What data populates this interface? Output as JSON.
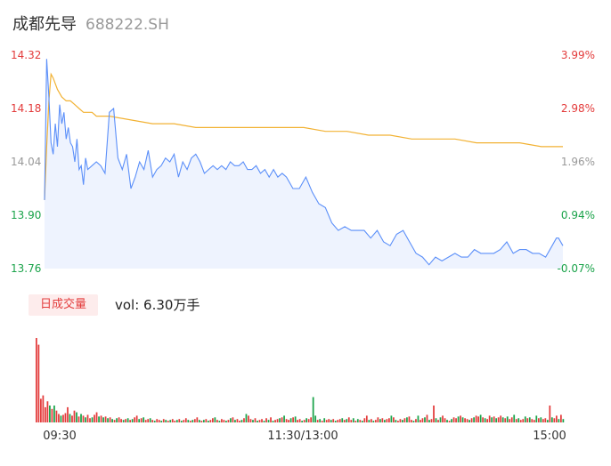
{
  "header": {
    "name": "成都先导",
    "code": "688222.SH"
  },
  "volume": {
    "tag": "日成交量",
    "label": "vol: 6.30万手"
  },
  "colors": {
    "price": "#5b8ff9",
    "avg": "#f2b234",
    "up": "#e33b3b",
    "down": "#1aa34a",
    "fill": "#eef3fe"
  },
  "chart_data": {
    "type": "line",
    "title": "",
    "price_axis": {
      "ylim": [
        13.76,
        14.32
      ],
      "ticks": [
        "14.32",
        "14.18",
        "14.04",
        "13.90",
        "13.76"
      ]
    },
    "pct_axis": {
      "ticks": [
        "3.99%",
        "2.98%",
        "1.96%",
        "0.94%",
        "-0.07%"
      ]
    },
    "x_ticks": [
      "09:30",
      "11:30/13:00",
      "15:00"
    ],
    "x_range": [
      0,
      240
    ],
    "series": [
      {
        "name": "",
        "kind": "price",
        "x": [
          0,
          1,
          2,
          3,
          4,
          5,
          6,
          7,
          8,
          9,
          10,
          11,
          12,
          13,
          14,
          15,
          16,
          17,
          18,
          19,
          20,
          22,
          24,
          26,
          28,
          30,
          32,
          34,
          36,
          38,
          40,
          42,
          44,
          46,
          48,
          50,
          52,
          54,
          56,
          58,
          60,
          62,
          64,
          66,
          68,
          70,
          72,
          74,
          76,
          78,
          80,
          82,
          84,
          86,
          88,
          90,
          92,
          94,
          96,
          98,
          100,
          102,
          104,
          106,
          108,
          110,
          112,
          115,
          118,
          121,
          124,
          127,
          130,
          133,
          136,
          139,
          142,
          145,
          148,
          151,
          154,
          157,
          160,
          163,
          166,
          169,
          172,
          175,
          178,
          181,
          184,
          187,
          190,
          193,
          196,
          199,
          202,
          205,
          208,
          211,
          214,
          217,
          220,
          223,
          226,
          229,
          232,
          235,
          237,
          238,
          240
        ],
        "values": [
          13.94,
          14.31,
          14.21,
          14.09,
          14.06,
          14.14,
          14.08,
          14.19,
          14.14,
          14.17,
          14.1,
          14.13,
          14.09,
          14.08,
          14.04,
          14.1,
          14.02,
          14.03,
          13.98,
          14.05,
          14.02,
          14.03,
          14.04,
          14.03,
          14.01,
          14.17,
          14.18,
          14.05,
          14.02,
          14.06,
          13.97,
          14.0,
          14.04,
          14.02,
          14.07,
          14.0,
          14.02,
          14.03,
          14.05,
          14.04,
          14.06,
          14.0,
          14.04,
          14.02,
          14.05,
          14.06,
          14.04,
          14.01,
          14.02,
          14.03,
          14.02,
          14.03,
          14.02,
          14.04,
          14.03,
          14.03,
          14.04,
          14.02,
          14.02,
          14.03,
          14.01,
          14.02,
          14.0,
          14.02,
          14.0,
          14.01,
          14.0,
          13.97,
          13.97,
          14.0,
          13.96,
          13.93,
          13.92,
          13.88,
          13.86,
          13.87,
          13.86,
          13.86,
          13.86,
          13.84,
          13.86,
          13.83,
          13.82,
          13.85,
          13.86,
          13.83,
          13.8,
          13.79,
          13.77,
          13.79,
          13.78,
          13.79,
          13.8,
          13.79,
          13.79,
          13.81,
          13.8,
          13.8,
          13.8,
          13.81,
          13.83,
          13.8,
          13.81,
          13.81,
          13.8,
          13.8,
          13.79,
          13.82,
          13.84,
          13.84,
          13.82
        ]
      },
      {
        "name": "",
        "kind": "avg",
        "x": [
          0,
          1,
          2,
          3,
          4,
          6,
          8,
          10,
          12,
          14,
          16,
          18,
          20,
          22,
          24,
          26,
          28,
          30,
          40,
          50,
          60,
          70,
          80,
          90,
          100,
          110,
          120,
          130,
          140,
          150,
          160,
          170,
          180,
          190,
          200,
          210,
          220,
          230,
          240
        ],
        "values": [
          13.94,
          14.08,
          14.2,
          14.27,
          14.26,
          14.23,
          14.21,
          14.2,
          14.2,
          14.19,
          14.18,
          14.17,
          14.17,
          14.17,
          14.16,
          14.16,
          14.16,
          14.16,
          14.15,
          14.14,
          14.14,
          14.13,
          14.13,
          14.13,
          14.13,
          14.13,
          14.13,
          14.12,
          14.12,
          14.11,
          14.11,
          14.1,
          14.1,
          14.1,
          14.09,
          14.09,
          14.09,
          14.08,
          14.08
        ]
      }
    ],
    "volume_series": {
      "ylim": [
        0,
        100
      ],
      "values": [
        100,
        92,
        28,
        32,
        18,
        25,
        20,
        16,
        20,
        14,
        10,
        8,
        9,
        11,
        18,
        10,
        8,
        14,
        12,
        7,
        10,
        8,
        6,
        9,
        5,
        6,
        9,
        12,
        7,
        8,
        6,
        7,
        5,
        6,
        4,
        3,
        5,
        6,
        4,
        3,
        4,
        5,
        3,
        4,
        6,
        8,
        4,
        5,
        6,
        3,
        4,
        5,
        3,
        2,
        4,
        3,
        2,
        4,
        3,
        2,
        3,
        4,
        2,
        3,
        4,
        2,
        3,
        5,
        3,
        2,
        3,
        4,
        6,
        3,
        2,
        3,
        4,
        2,
        3,
        5,
        6,
        3,
        2,
        4,
        3,
        2,
        3,
        5,
        6,
        3,
        4,
        2,
        3,
        5,
        10,
        8,
        4,
        3,
        5,
        2,
        3,
        4,
        2,
        5,
        3,
        6,
        2,
        3,
        4,
        5,
        6,
        8,
        4,
        3,
        5,
        6,
        7,
        3,
        4,
        2,
        3,
        5,
        4,
        6,
        30,
        8,
        3,
        4,
        2,
        5,
        3,
        4,
        3,
        4,
        2,
        3,
        4,
        5,
        3,
        4,
        6,
        3,
        5,
        2,
        4,
        3,
        2,
        5,
        8,
        3,
        4,
        2,
        3,
        6,
        4,
        5,
        3,
        4,
        5,
        8,
        6,
        3,
        2,
        4,
        3,
        5,
        6,
        7,
        3,
        2,
        4,
        8,
        3,
        5,
        6,
        9,
        3,
        4,
        20,
        5,
        3,
        6,
        8,
        5,
        3,
        2,
        4,
        6,
        5,
        7,
        8,
        6,
        5,
        4,
        3,
        5,
        6,
        8,
        7,
        9,
        6,
        5,
        4,
        8,
        6,
        7,
        5,
        6,
        8,
        6,
        5,
        7,
        4,
        6,
        9,
        4,
        5,
        3,
        4,
        7,
        5,
        6,
        4,
        3,
        8,
        5,
        6,
        4,
        5,
        3,
        20,
        6,
        5,
        8,
        4,
        9,
        4
      ],
      "dirs": [
        "u",
        "u",
        "u",
        "u",
        "u",
        "u",
        "d",
        "u",
        "d",
        "u",
        "u",
        "d",
        "u",
        "u",
        "u",
        "d",
        "u",
        "u",
        "d",
        "u",
        "d",
        "u",
        "d",
        "u",
        "u",
        "d",
        "u",
        "u",
        "d",
        "u",
        "d",
        "u",
        "d",
        "u",
        "d",
        "u",
        "d",
        "u",
        "u",
        "d",
        "u",
        "d",
        "u",
        "d",
        "u",
        "u",
        "d",
        "u",
        "d",
        "u",
        "u",
        "d",
        "u",
        "d",
        "u",
        "u",
        "d",
        "u",
        "d",
        "u",
        "d",
        "u",
        "u",
        "d",
        "u",
        "d",
        "u",
        "u",
        "d",
        "u",
        "d",
        "u",
        "u",
        "d",
        "u",
        "d",
        "u",
        "d",
        "u",
        "u",
        "d",
        "u",
        "d",
        "u",
        "u",
        "d",
        "u",
        "d",
        "u",
        "d",
        "u",
        "u",
        "d",
        "u",
        "d",
        "u",
        "u",
        "d",
        "u",
        "d",
        "u",
        "u",
        "d",
        "u",
        "d",
        "u",
        "d",
        "u",
        "u",
        "d",
        "u",
        "d",
        "u",
        "u",
        "d",
        "u",
        "d",
        "u",
        "u",
        "d",
        "u",
        "d",
        "u",
        "u",
        "d",
        "d",
        "u",
        "d",
        "u",
        "d",
        "u",
        "u",
        "d",
        "u",
        "d",
        "u",
        "u",
        "d",
        "u",
        "d",
        "u",
        "u",
        "d",
        "u",
        "d",
        "u",
        "d",
        "u",
        "u",
        "d",
        "u",
        "d",
        "u",
        "u",
        "d",
        "u",
        "d",
        "u",
        "u",
        "d",
        "u",
        "d",
        "u",
        "u",
        "d",
        "u",
        "d",
        "u",
        "u",
        "d",
        "u",
        "d",
        "u",
        "u",
        "d",
        "u",
        "d",
        "u",
        "u",
        "d",
        "u",
        "d",
        "u",
        "u",
        "d",
        "u",
        "d",
        "u",
        "u",
        "d",
        "u",
        "d",
        "u",
        "u",
        "d",
        "u",
        "d",
        "u",
        "u",
        "d",
        "u",
        "d",
        "u",
        "u",
        "d",
        "u",
        "d",
        "u",
        "u",
        "d",
        "u",
        "d",
        "u",
        "u",
        "d",
        "u",
        "d",
        "u",
        "u",
        "d",
        "u",
        "d",
        "u",
        "u",
        "d",
        "u",
        "d",
        "u",
        "u",
        "d",
        "u",
        "d",
        "u",
        "u",
        "d",
        "u",
        "d",
        "u",
        "u",
        "d",
        "u",
        "d",
        "u"
      ]
    }
  }
}
